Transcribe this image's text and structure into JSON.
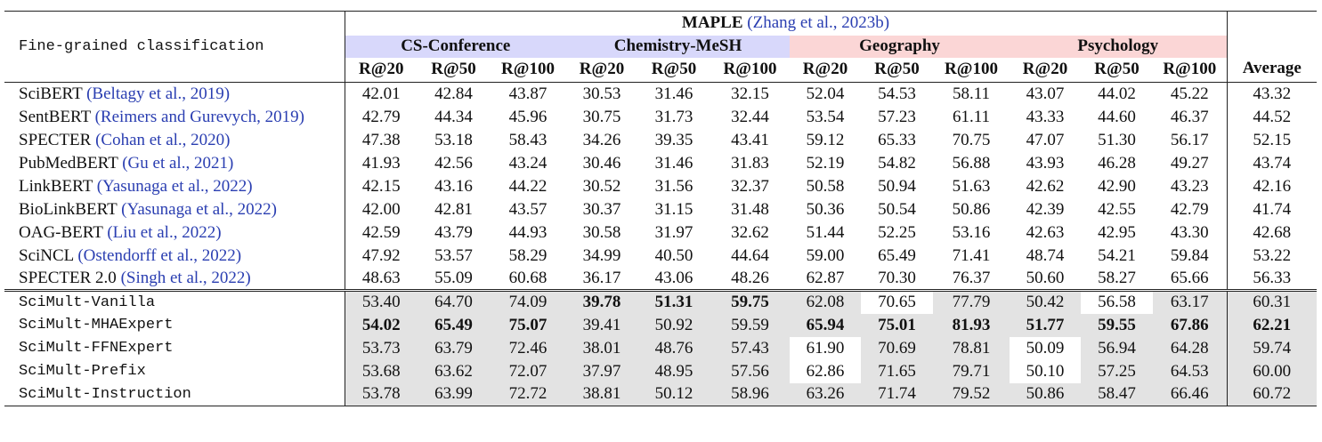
{
  "header": {
    "task": "Fine-grained classification",
    "dataset": "MAPLE",
    "dataset_cite": "(Zhang et al., 2023b)",
    "groups": [
      "CS-Conference",
      "Chemistry-MeSH",
      "Geography",
      "Psychology"
    ],
    "metrics": [
      "R@20",
      "R@50",
      "R@100",
      "R@20",
      "R@50",
      "R@100",
      "R@20",
      "R@50",
      "R@100",
      "R@20",
      "R@50",
      "R@100"
    ],
    "average": "Average"
  },
  "baselines": [
    {
      "name": "SciBERT",
      "cite": "(Beltagy et al., 2019)",
      "values": [
        "42.01",
        "42.84",
        "43.87",
        "30.53",
        "31.46",
        "32.15",
        "52.04",
        "54.53",
        "58.11",
        "43.07",
        "44.02",
        "45.22",
        "43.32"
      ]
    },
    {
      "name": "SentBERT",
      "cite": "(Reimers and Gurevych, 2019)",
      "values": [
        "42.79",
        "44.34",
        "45.96",
        "30.75",
        "31.73",
        "32.44",
        "53.54",
        "57.23",
        "61.11",
        "43.33",
        "44.60",
        "46.37",
        "44.52"
      ]
    },
    {
      "name": "SPECTER",
      "cite": "(Cohan et al., 2020)",
      "values": [
        "47.38",
        "53.18",
        "58.43",
        "34.26",
        "39.35",
        "43.41",
        "59.12",
        "65.33",
        "70.75",
        "47.07",
        "51.30",
        "56.17",
        "52.15"
      ]
    },
    {
      "name": "PubMedBERT",
      "cite": "(Gu et al., 2021)",
      "values": [
        "41.93",
        "42.56",
        "43.24",
        "30.46",
        "31.46",
        "31.83",
        "52.19",
        "54.82",
        "56.88",
        "43.93",
        "46.28",
        "49.27",
        "43.74"
      ]
    },
    {
      "name": "LinkBERT",
      "cite": "(Yasunaga et al., 2022)",
      "values": [
        "42.15",
        "43.16",
        "44.22",
        "30.52",
        "31.56",
        "32.37",
        "50.58",
        "50.94",
        "51.63",
        "42.62",
        "42.90",
        "43.23",
        "42.16"
      ]
    },
    {
      "name": "BioLinkBERT",
      "cite": "(Yasunaga et al., 2022)",
      "values": [
        "42.00",
        "42.81",
        "43.57",
        "30.37",
        "31.15",
        "31.48",
        "50.36",
        "50.54",
        "50.86",
        "42.39",
        "42.55",
        "42.79",
        "41.74"
      ]
    },
    {
      "name": "OAG-BERT",
      "cite": "(Liu et al., 2022)",
      "values": [
        "42.59",
        "43.79",
        "44.93",
        "30.58",
        "31.97",
        "32.62",
        "51.44",
        "52.25",
        "53.16",
        "42.63",
        "42.95",
        "43.30",
        "42.68"
      ]
    },
    {
      "name": "SciNCL",
      "cite": "(Ostendorff et al., 2022)",
      "values": [
        "47.92",
        "53.57",
        "58.29",
        "34.99",
        "40.50",
        "44.64",
        "59.00",
        "65.49",
        "71.41",
        "48.74",
        "54.21",
        "59.84",
        "53.22"
      ]
    },
    {
      "name": "SPECTER 2.0",
      "cite": "(Singh et al., 2022)",
      "values": [
        "48.63",
        "55.09",
        "60.68",
        "36.17",
        "43.06",
        "48.26",
        "62.87",
        "70.30",
        "76.37",
        "50.60",
        "58.27",
        "65.66",
        "56.33"
      ]
    }
  ],
  "scimult": [
    {
      "name": "SciMult-Vanilla",
      "values": [
        "53.40",
        "64.70",
        "74.09",
        "39.78",
        "51.31",
        "59.75",
        "62.08",
        "70.65",
        "77.79",
        "50.42",
        "56.58",
        "63.17",
        "60.31"
      ],
      "bold": [
        3,
        4,
        5
      ],
      "white": [
        7,
        10
      ]
    },
    {
      "name": "SciMult-MHAExpert",
      "values": [
        "54.02",
        "65.49",
        "75.07",
        "39.41",
        "50.92",
        "59.59",
        "65.94",
        "75.01",
        "81.93",
        "51.77",
        "59.55",
        "67.86",
        "62.21"
      ],
      "bold": [
        0,
        1,
        2,
        6,
        7,
        8,
        9,
        10,
        11,
        12
      ],
      "white": []
    },
    {
      "name": "SciMult-FFNExpert",
      "values": [
        "53.73",
        "63.79",
        "72.46",
        "38.01",
        "48.76",
        "57.43",
        "61.90",
        "70.69",
        "78.81",
        "50.09",
        "56.94",
        "64.28",
        "59.74"
      ],
      "bold": [],
      "white": [
        6,
        9
      ]
    },
    {
      "name": "SciMult-Prefix",
      "values": [
        "53.68",
        "63.62",
        "72.07",
        "37.97",
        "48.95",
        "57.56",
        "62.86",
        "71.65",
        "79.71",
        "50.10",
        "57.25",
        "64.53",
        "60.00"
      ],
      "bold": [],
      "white": [
        6,
        9
      ]
    },
    {
      "name": "SciMult-Instruction",
      "values": [
        "53.78",
        "63.99",
        "72.72",
        "38.81",
        "50.12",
        "58.96",
        "63.26",
        "71.74",
        "79.52",
        "50.86",
        "58.47",
        "66.46",
        "60.72"
      ],
      "bold": [],
      "white": []
    }
  ],
  "colors": {
    "cs_conference": "#d8d8fb",
    "chemistry_mesh": "#d8d8fb",
    "geography": "#fbd6d6",
    "psychology": "#fbd6d6",
    "scimult_shade": "#e3e3e3",
    "citation": "#2a3eb1"
  }
}
